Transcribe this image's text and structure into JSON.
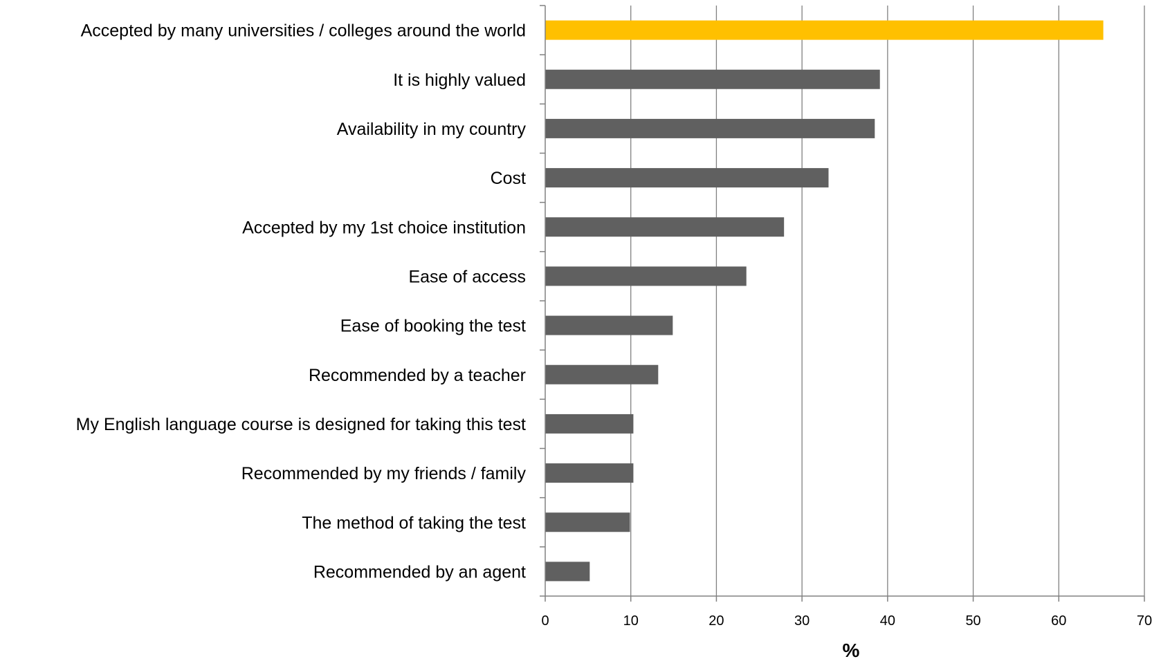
{
  "chart_data": {
    "type": "bar",
    "orientation": "horizontal",
    "categories": [
      "Accepted by many universities / colleges around the world",
      "It is highly valued",
      "Availability in my country",
      "Cost",
      "Accepted by my 1st choice institution",
      "Ease of access",
      "Ease of booking the test",
      "Recommended by a teacher",
      "My English language course is designed for taking this test",
      "Recommended by my friends / family",
      "The method of taking the test",
      "Recommended by an agent"
    ],
    "values": [
      65.2,
      39.1,
      38.5,
      33.1,
      27.9,
      23.5,
      14.9,
      13.2,
      10.3,
      10.3,
      9.9,
      5.2
    ],
    "highlight_index": 0,
    "xlabel": "%",
    "ylabel": "",
    "title": "",
    "xlim": [
      0,
      70
    ],
    "xticks": [
      "0",
      "10",
      "20",
      "30",
      "40",
      "50",
      "60",
      "70"
    ],
    "grid": "vertical",
    "legend": "none",
    "colors": {
      "highlight": "#FFC000",
      "bar": "#606060",
      "grid": "#808080",
      "axis": "#808080"
    }
  }
}
